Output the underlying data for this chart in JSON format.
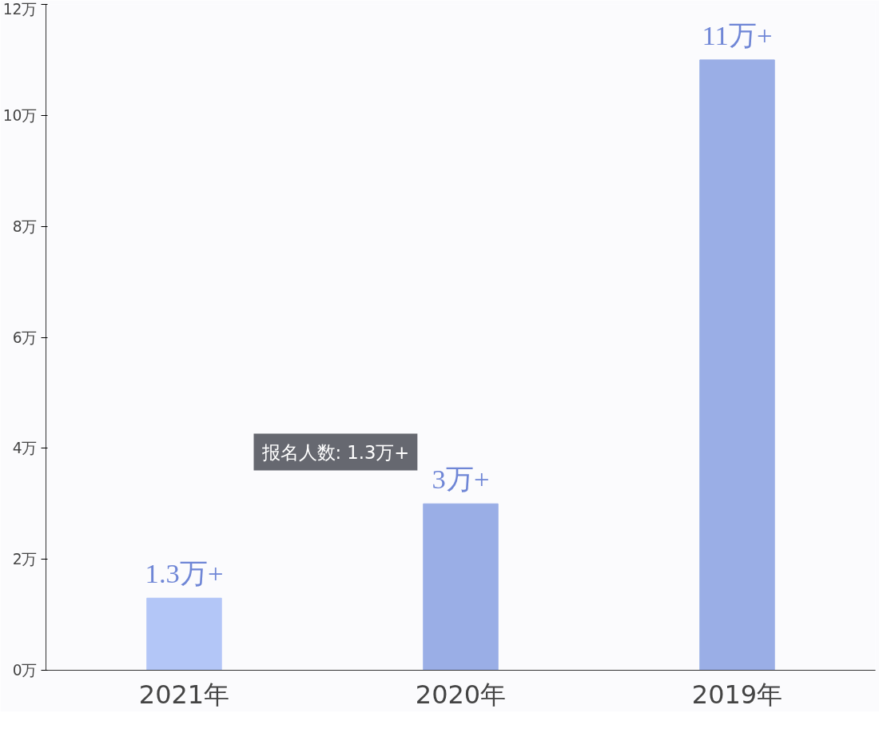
{
  "chart_data": {
    "type": "bar",
    "categories": [
      "2021年",
      "2020年",
      "2019年"
    ],
    "values": [
      1.3,
      3,
      11
    ],
    "colors": [
      "#b3c6f7",
      "#9aaee6",
      "#9aaee6"
    ],
    "value_labels": [
      "1.3万+",
      "3万+",
      "11万+"
    ],
    "ylim": [
      0,
      12
    ],
    "yticks": [
      {
        "value": 0,
        "label": "0万"
      },
      {
        "value": 2,
        "label": "2万"
      },
      {
        "value": 4,
        "label": "4万"
      },
      {
        "value": 6,
        "label": "6万"
      },
      {
        "value": 8,
        "label": "8万"
      },
      {
        "value": 10,
        "label": "10万"
      },
      {
        "value": 12,
        "label": "12万"
      }
    ],
    "grid": false,
    "annotations": [
      "报名人数: 1.3万+"
    ]
  }
}
